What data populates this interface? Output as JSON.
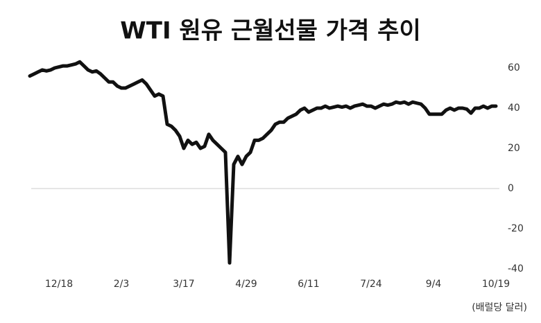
{
  "chart_data": {
    "type": "line",
    "title": "WTI 원유 근월선물 가격 추이",
    "unit_note": "(배럴당 달러)",
    "categories": [
      null,
      null,
      null,
      null,
      null,
      null,
      null,
      "12/18",
      null,
      null,
      null,
      null,
      null,
      null,
      null,
      null,
      null,
      null,
      null,
      null,
      null,
      null,
      "2/3",
      null,
      null,
      null,
      null,
      null,
      null,
      null,
      null,
      null,
      null,
      null,
      null,
      null,
      null,
      "3/17",
      null,
      null,
      null,
      null,
      null,
      null,
      null,
      null,
      null,
      null,
      null,
      null,
      null,
      null,
      "4/29",
      null,
      null,
      null,
      null,
      null,
      null,
      null,
      null,
      null,
      null,
      null,
      null,
      null,
      null,
      "6/11",
      null,
      null,
      null,
      null,
      null,
      null,
      null,
      null,
      null,
      null,
      null,
      null,
      null,
      null,
      "7/24",
      null,
      null,
      null,
      null,
      null,
      null,
      null,
      null,
      null,
      null,
      null,
      null,
      null,
      null,
      "9/4",
      null,
      null,
      null,
      null,
      null,
      null,
      null,
      null,
      null,
      null,
      null,
      null,
      null,
      null,
      "10/19"
    ],
    "values": [
      56,
      57,
      58,
      59,
      58.5,
      59,
      60,
      60.5,
      61,
      61,
      61.5,
      62,
      63,
      61,
      59,
      58,
      58.5,
      57,
      55,
      53,
      53,
      51,
      50,
      50,
      51,
      52,
      53,
      54,
      52,
      49,
      46,
      47,
      46,
      32,
      31,
      29,
      26,
      20,
      24,
      22,
      23,
      20,
      21,
      27,
      24,
      22,
      20,
      18,
      -37,
      12,
      16,
      12,
      16,
      18,
      24,
      24,
      25,
      27,
      29,
      32,
      33,
      33,
      35,
      36,
      37,
      39,
      40,
      38,
      39,
      40,
      40,
      41,
      40,
      40.5,
      41,
      40.5,
      41,
      40,
      41,
      41.5,
      42,
      41,
      41,
      40,
      41,
      42,
      41.5,
      42,
      43,
      42.5,
      43,
      42,
      43,
      42.5,
      42,
      40,
      37,
      37,
      37,
      37,
      39,
      40,
      39,
      40,
      40,
      39.5,
      37.5,
      40,
      40,
      41,
      40,
      41,
      41
    ],
    "color": "#111111",
    "ylim": [
      -40,
      60
    ],
    "yticks": [
      -40,
      -20,
      0,
      20,
      40,
      60
    ],
    "zero_line": true
  }
}
